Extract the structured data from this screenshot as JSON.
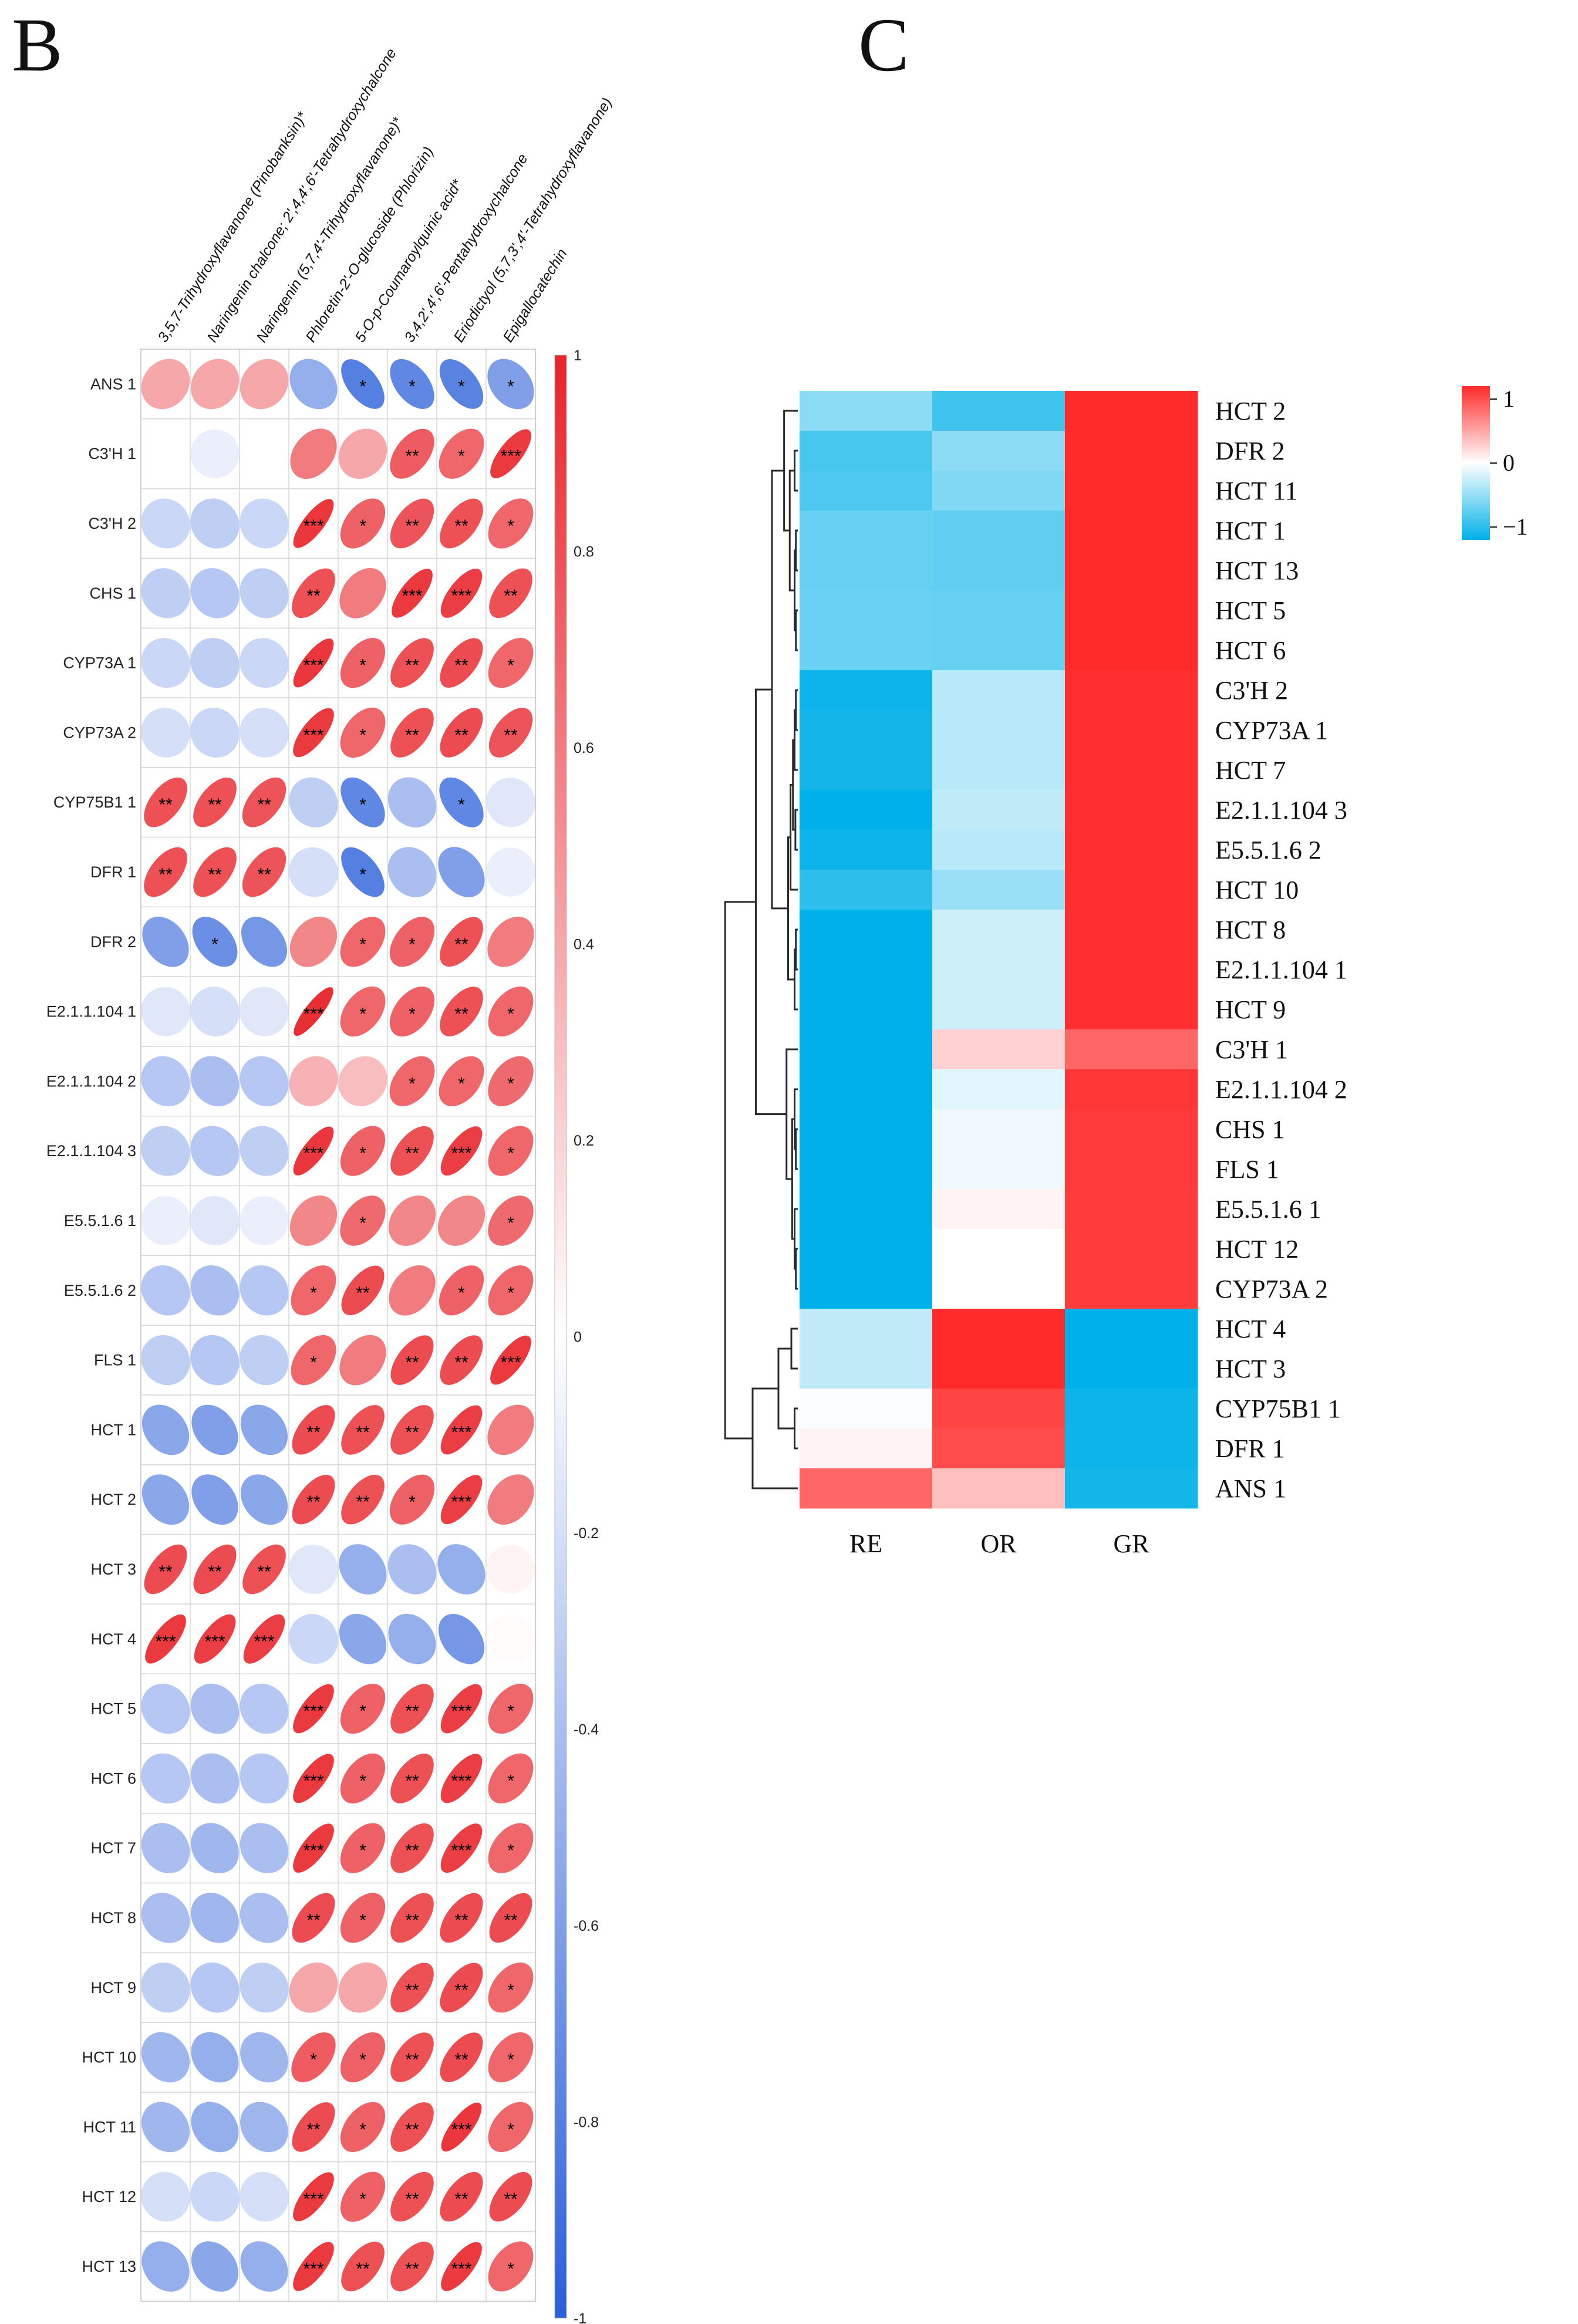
{
  "panels": {
    "left_letter": "B",
    "right_letter": "C"
  },
  "chart_data": [
    {
      "type": "heatmap",
      "title": "",
      "shape": "ellipse",
      "columns": [
        "3,5,7-Trihydroxyflavanone (Pinobanksin)*",
        "Naringenin chalcone; 2',4,4',6'-Tetrahydroxychalcone",
        "Naringenin (5,7,4'-Trihydroxyflavanone)*",
        "Phloretin-2'-O-glucoside (Phlorizin)",
        "5-O-p-Coumaroylquinic acid*",
        "3,4,2',4',6'-Pentahydroxychalcone",
        "Eriodictyol (5,7,3',4'-Tetrahydroxyflavanone)",
        "Epigallocatechin"
      ],
      "rows": [
        "ANS  1",
        "C3'H  1",
        "C3'H  2",
        "CHS  1",
        "CYP73A  1",
        "CYP73A  2",
        "CYP75B1  1",
        "DFR  1",
        "DFR  2",
        "E2.1.1.104  1",
        "E2.1.1.104  2",
        "E2.1.1.104  3",
        "E5.5.1.6  1",
        "E5.5.1.6  2",
        "FLS  1",
        "HCT  1",
        "HCT  2",
        "HCT  3",
        "HCT  4",
        "HCT  5",
        "HCT  6",
        "HCT  7",
        "HCT  8",
        "HCT  9",
        "HCT  10",
        "HCT  11",
        "HCT  12",
        "HCT  13"
      ],
      "values": [
        [
          0.4,
          0.4,
          0.4,
          -0.5,
          -0.8,
          -0.75,
          -0.78,
          -0.6
        ],
        [
          0.0,
          -0.1,
          0.0,
          0.6,
          0.4,
          0.75,
          0.7,
          0.9
        ],
        [
          -0.25,
          -0.3,
          -0.25,
          0.92,
          0.72,
          0.78,
          0.8,
          0.7
        ],
        [
          -0.3,
          -0.35,
          -0.3,
          0.8,
          0.6,
          0.9,
          0.88,
          0.8
        ],
        [
          -0.25,
          -0.3,
          -0.25,
          0.92,
          0.72,
          0.8,
          0.82,
          0.7
        ],
        [
          -0.2,
          -0.25,
          -0.2,
          0.9,
          0.7,
          0.8,
          0.82,
          0.78
        ],
        [
          0.8,
          0.8,
          0.78,
          -0.3,
          -0.75,
          -0.4,
          -0.75,
          -0.15
        ],
        [
          0.8,
          0.8,
          0.78,
          -0.2,
          -0.8,
          -0.4,
          -0.6,
          -0.1
        ],
        [
          -0.6,
          -0.7,
          -0.65,
          0.55,
          0.7,
          0.72,
          0.8,
          0.6
        ],
        [
          -0.15,
          -0.2,
          -0.15,
          0.95,
          0.7,
          0.72,
          0.8,
          0.7
        ],
        [
          -0.35,
          -0.4,
          -0.35,
          0.35,
          0.3,
          0.7,
          0.7,
          0.68
        ],
        [
          -0.3,
          -0.35,
          -0.3,
          0.92,
          0.72,
          0.8,
          0.88,
          0.7
        ],
        [
          -0.1,
          -0.15,
          -0.1,
          0.55,
          0.68,
          0.55,
          0.55,
          0.68
        ],
        [
          -0.35,
          -0.4,
          -0.35,
          0.7,
          0.82,
          0.6,
          0.72,
          0.7
        ],
        [
          -0.3,
          -0.35,
          -0.3,
          0.7,
          0.6,
          0.82,
          0.82,
          0.9
        ],
        [
          -0.55,
          -0.6,
          -0.55,
          0.82,
          0.8,
          0.8,
          0.88,
          0.6
        ],
        [
          -0.55,
          -0.6,
          -0.55,
          0.82,
          0.8,
          0.72,
          0.88,
          0.6
        ],
        [
          0.82,
          0.82,
          0.8,
          -0.15,
          -0.5,
          -0.4,
          -0.5,
          0.05
        ],
        [
          0.9,
          0.88,
          0.88,
          -0.25,
          -0.55,
          -0.5,
          -0.65,
          0.02
        ],
        [
          -0.35,
          -0.4,
          -0.35,
          0.9,
          0.72,
          0.8,
          0.88,
          0.7
        ],
        [
          -0.35,
          -0.4,
          -0.35,
          0.9,
          0.72,
          0.8,
          0.88,
          0.7
        ],
        [
          -0.4,
          -0.45,
          -0.4,
          0.9,
          0.72,
          0.8,
          0.88,
          0.7
        ],
        [
          -0.4,
          -0.45,
          -0.4,
          0.82,
          0.72,
          0.8,
          0.82,
          0.82
        ],
        [
          -0.3,
          -0.35,
          -0.3,
          0.4,
          0.4,
          0.8,
          0.82,
          0.7
        ],
        [
          -0.45,
          -0.5,
          -0.45,
          0.75,
          0.72,
          0.8,
          0.82,
          0.7
        ],
        [
          -0.45,
          -0.5,
          -0.45,
          0.82,
          0.72,
          0.8,
          0.92,
          0.7
        ],
        [
          -0.2,
          -0.25,
          -0.2,
          0.9,
          0.72,
          0.8,
          0.82,
          0.82
        ],
        [
          -0.5,
          -0.55,
          -0.5,
          0.9,
          0.8,
          0.8,
          0.9,
          0.7
        ]
      ],
      "significance": [
        [
          "",
          "",
          "",
          "",
          "*",
          "*",
          "*",
          "*"
        ],
        [
          "",
          "",
          "",
          "",
          "",
          "**",
          "*",
          "***"
        ],
        [
          "",
          "",
          "",
          "***",
          "*",
          "**",
          "**",
          "*"
        ],
        [
          "",
          "",
          "",
          "**",
          "",
          "***",
          "***",
          "**"
        ],
        [
          "",
          "",
          "",
          "***",
          "*",
          "**",
          "**",
          "*"
        ],
        [
          "",
          "",
          "",
          "***",
          "*",
          "**",
          "**",
          "**"
        ],
        [
          "**",
          "**",
          "**",
          "",
          "*",
          "",
          "*",
          ""
        ],
        [
          "**",
          "**",
          "**",
          "",
          "*",
          "",
          "",
          ""
        ],
        [
          "",
          "*",
          "",
          "",
          "*",
          "*",
          "**",
          ""
        ],
        [
          "",
          "",
          "",
          "***",
          "*",
          "*",
          "**",
          "*"
        ],
        [
          "",
          "",
          "",
          "",
          "",
          "*",
          "*",
          "*"
        ],
        [
          "",
          "",
          "",
          "***",
          "*",
          "**",
          "***",
          "*"
        ],
        [
          "",
          "",
          "",
          "",
          "*",
          "",
          "",
          "*"
        ],
        [
          "",
          "",
          "",
          "*",
          "**",
          "",
          "*",
          "*"
        ],
        [
          "",
          "",
          "",
          "*",
          "",
          "**",
          "**",
          "***"
        ],
        [
          "",
          "",
          "",
          "**",
          "**",
          "**",
          "***",
          ""
        ],
        [
          "",
          "",
          "",
          "**",
          "**",
          "*",
          "***",
          ""
        ],
        [
          "**",
          "**",
          "**",
          "",
          "",
          "",
          "",
          ""
        ],
        [
          "***",
          "***",
          "***",
          "",
          "",
          "",
          "",
          ""
        ],
        [
          "",
          "",
          "",
          "***",
          "*",
          "**",
          "***",
          "*"
        ],
        [
          "",
          "",
          "",
          "***",
          "*",
          "**",
          "***",
          "*"
        ],
        [
          "",
          "",
          "",
          "***",
          "*",
          "**",
          "***",
          "*"
        ],
        [
          "",
          "",
          "",
          "**",
          "*",
          "**",
          "**",
          "**"
        ],
        [
          "",
          "",
          "",
          "",
          "",
          "**",
          "**",
          "*"
        ],
        [
          "",
          "",
          "",
          "*",
          "*",
          "**",
          "**",
          "*"
        ],
        [
          "",
          "",
          "",
          "**",
          "*",
          "**",
          "***",
          "*"
        ],
        [
          "",
          "",
          "",
          "***",
          "*",
          "**",
          "**",
          "**"
        ],
        [
          "",
          "",
          "",
          "***",
          "**",
          "**",
          "***",
          "*"
        ]
      ],
      "colorbar": {
        "min": -1,
        "max": 1,
        "ticks": [
          "1",
          "0.8",
          "0.6",
          "0.4",
          "0.2",
          "0",
          "-0.2",
          "-0.4",
          "-0.6",
          "-0.8",
          "-1"
        ]
      },
      "colors": {
        "low": "#2b5fd9",
        "mid": "#ffffff",
        "high": "#e8242b"
      }
    },
    {
      "type": "heatmap",
      "title": "",
      "clustered": true,
      "columns": [
        "RE",
        "OR",
        "GR"
      ],
      "rows": [
        "HCT 2",
        "DFR 2",
        "HCT 11",
        "HCT 1",
        "HCT 13",
        "HCT 5",
        "HCT 6",
        "C3'H 2",
        "CYP73A 1",
        "HCT 7",
        "E2.1.1.104 3",
        "E5.5.1.6 2",
        "HCT 10",
        "HCT 8",
        "E2.1.1.104 1",
        "HCT 9",
        "C3'H 1",
        "E2.1.1.104 2",
        "CHS 1",
        "FLS 1",
        "E5.5.1.6 1",
        "HCT 12",
        "CYP73A 2",
        "HCT 4",
        "HCT 3",
        "CYP75B1 1",
        "DFR 1",
        "ANS 1"
      ],
      "values": [
        [
          -0.45,
          -0.75,
          1.0
        ],
        [
          -0.72,
          -0.45,
          1.0
        ],
        [
          -0.7,
          -0.5,
          1.0
        ],
        [
          -0.6,
          -0.62,
          1.0
        ],
        [
          -0.6,
          -0.62,
          1.0
        ],
        [
          -0.58,
          -0.6,
          1.0
        ],
        [
          -0.58,
          -0.6,
          1.0
        ],
        [
          -0.95,
          -0.28,
          0.98
        ],
        [
          -0.92,
          -0.28,
          0.98
        ],
        [
          -0.92,
          -0.28,
          0.98
        ],
        [
          -1.0,
          -0.25,
          0.98
        ],
        [
          -0.95,
          -0.28,
          0.98
        ],
        [
          -0.82,
          -0.4,
          0.98
        ],
        [
          -1.0,
          -0.2,
          0.98
        ],
        [
          -1.0,
          -0.2,
          0.98
        ],
        [
          -1.0,
          -0.2,
          0.98
        ],
        [
          -1.05,
          0.22,
          0.72
        ],
        [
          -1.0,
          -0.12,
          0.95
        ],
        [
          -1.0,
          -0.06,
          0.93
        ],
        [
          -1.0,
          -0.06,
          0.93
        ],
        [
          -1.0,
          0.06,
          0.92
        ],
        [
          -1.0,
          0.0,
          0.92
        ],
        [
          -1.0,
          0.0,
          0.92
        ],
        [
          -0.25,
          1.0,
          -1.0
        ],
        [
          -0.25,
          1.0,
          -1.0
        ],
        [
          -0.02,
          0.88,
          -0.95
        ],
        [
          0.06,
          0.85,
          -0.95
        ],
        [
          0.72,
          0.3,
          -0.92
        ]
      ],
      "colorbar": {
        "min": -1,
        "max": 1,
        "ticks": [
          "1",
          "0",
          "−1"
        ]
      },
      "colors": {
        "low": "#00b0e8",
        "mid": "#ffffff",
        "high": "#ff2b2b"
      }
    }
  ]
}
